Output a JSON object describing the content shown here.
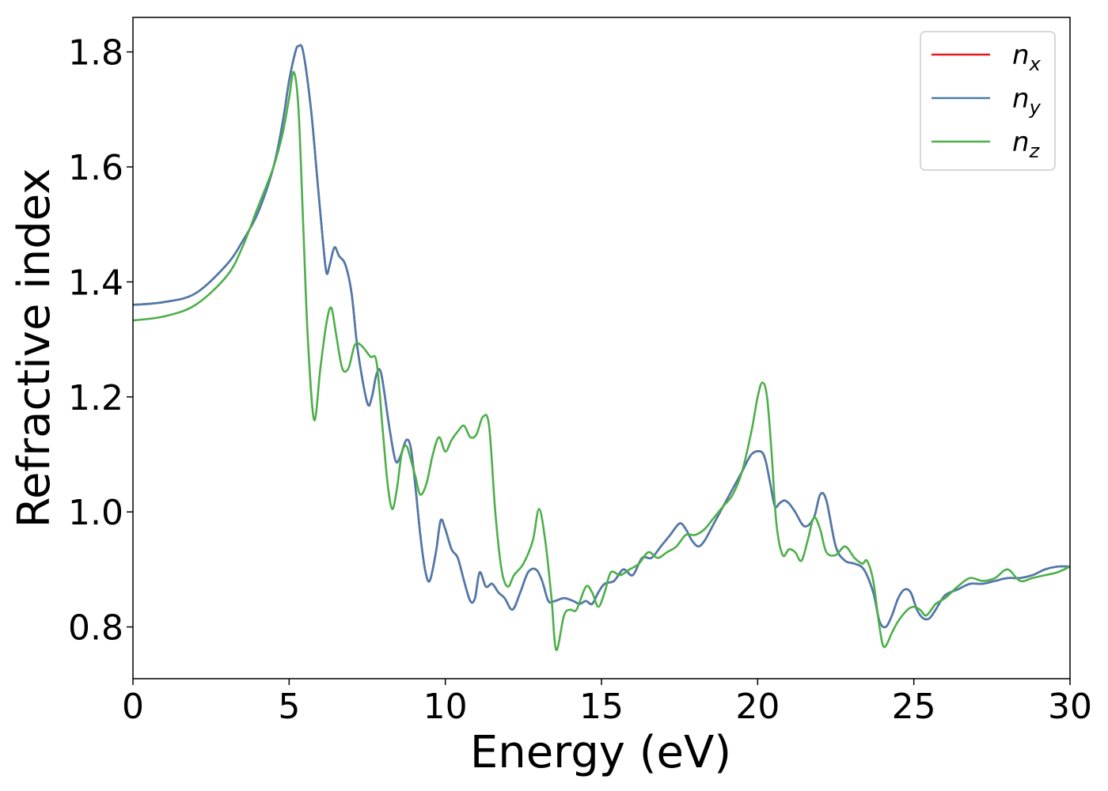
{
  "chart_data": {
    "type": "line",
    "title": "",
    "xlabel": "Energy (eV)",
    "ylabel": "Refractive index",
    "xlim": [
      0,
      30
    ],
    "ylim": [
      0.71,
      1.86
    ],
    "xticks": [
      0,
      5,
      10,
      15,
      20,
      25,
      30
    ],
    "xtick_labels": [
      "0",
      "5",
      "10",
      "15",
      "20",
      "25",
      "30"
    ],
    "yticks": [
      0.8,
      1.0,
      1.2,
      1.4,
      1.6,
      1.8
    ],
    "ytick_labels": [
      "0.8",
      "1.0",
      "1.2",
      "1.4",
      "1.6",
      "1.8"
    ],
    "grid": false,
    "legend_position": "top-right",
    "series": [
      {
        "name": "n_x",
        "legend_base": "n",
        "legend_sub": "x",
        "color": "#e41a1c",
        "x": [
          0,
          1,
          2,
          3,
          3.5,
          4,
          4.5,
          4.8,
          5.0,
          5.2,
          5.3,
          5.45,
          5.7,
          5.9,
          6.1,
          6.2,
          6.3,
          6.45,
          6.6,
          6.8,
          7.0,
          7.2,
          7.5,
          7.65,
          7.8,
          7.95,
          8.2,
          8.4,
          8.55,
          8.75,
          8.9,
          9.05,
          9.2,
          9.35,
          9.5,
          9.7,
          9.85,
          10.0,
          10.2,
          10.4,
          10.6,
          10.8,
          10.95,
          11.1,
          11.3,
          11.5,
          11.7,
          11.9,
          12.15,
          12.4,
          12.65,
          12.9,
          13.1,
          13.3,
          13.5,
          13.8,
          14.1,
          14.3,
          14.5,
          14.7,
          14.9,
          15.1,
          15.4,
          15.7,
          16.0,
          16.3,
          16.6,
          16.9,
          17.2,
          17.5,
          17.7,
          17.9,
          18.1,
          18.3,
          18.6,
          18.9,
          19.2,
          19.5,
          19.8,
          20.1,
          20.25,
          20.4,
          20.55,
          20.7,
          20.85,
          21.0,
          21.2,
          21.5,
          21.8,
          22.0,
          22.2,
          22.5,
          22.8,
          23.1,
          23.4,
          23.7,
          23.9,
          24.1,
          24.3,
          24.5,
          24.7,
          24.9,
          25.1,
          25.3,
          25.5,
          25.7,
          26.0,
          26.4,
          26.8,
          27.2,
          27.6,
          28.0,
          28.4,
          28.8,
          29.2,
          29.6,
          30.0
        ],
        "y": [
          1.36,
          1.365,
          1.38,
          1.43,
          1.47,
          1.52,
          1.6,
          1.68,
          1.75,
          1.8,
          1.81,
          1.8,
          1.7,
          1.58,
          1.46,
          1.415,
          1.43,
          1.46,
          1.445,
          1.43,
          1.38,
          1.28,
          1.19,
          1.2,
          1.24,
          1.24,
          1.15,
          1.09,
          1.095,
          1.125,
          1.11,
          1.04,
          0.96,
          0.9,
          0.88,
          0.93,
          0.985,
          0.97,
          0.935,
          0.92,
          0.88,
          0.845,
          0.85,
          0.895,
          0.87,
          0.875,
          0.86,
          0.85,
          0.83,
          0.86,
          0.895,
          0.9,
          0.88,
          0.845,
          0.845,
          0.85,
          0.845,
          0.84,
          0.845,
          0.84,
          0.86,
          0.875,
          0.88,
          0.9,
          0.89,
          0.92,
          0.92,
          0.94,
          0.96,
          0.98,
          0.97,
          0.95,
          0.94,
          0.95,
          0.98,
          1.01,
          1.04,
          1.07,
          1.1,
          1.105,
          1.09,
          1.05,
          1.01,
          1.015,
          1.02,
          1.015,
          1.0,
          0.975,
          0.99,
          1.03,
          1.02,
          0.94,
          0.915,
          0.91,
          0.9,
          0.86,
          0.81,
          0.8,
          0.82,
          0.85,
          0.865,
          0.86,
          0.83,
          0.815,
          0.815,
          0.83,
          0.855,
          0.865,
          0.875,
          0.875,
          0.88,
          0.885,
          0.885,
          0.89,
          0.9,
          0.905,
          0.905
        ]
      },
      {
        "name": "n_y",
        "legend_base": "n",
        "legend_sub": "y",
        "color": "#4a7bad",
        "x": [
          0,
          1,
          2,
          3,
          3.5,
          4,
          4.5,
          4.8,
          5.0,
          5.2,
          5.3,
          5.45,
          5.7,
          5.9,
          6.1,
          6.2,
          6.3,
          6.45,
          6.6,
          6.8,
          7.0,
          7.2,
          7.5,
          7.65,
          7.8,
          7.95,
          8.2,
          8.4,
          8.55,
          8.75,
          8.9,
          9.05,
          9.2,
          9.35,
          9.5,
          9.7,
          9.85,
          10.0,
          10.2,
          10.4,
          10.6,
          10.8,
          10.95,
          11.1,
          11.3,
          11.5,
          11.7,
          11.9,
          12.15,
          12.4,
          12.65,
          12.9,
          13.1,
          13.3,
          13.5,
          13.8,
          14.1,
          14.3,
          14.5,
          14.7,
          14.9,
          15.1,
          15.4,
          15.7,
          16.0,
          16.3,
          16.6,
          16.9,
          17.2,
          17.5,
          17.7,
          17.9,
          18.1,
          18.3,
          18.6,
          18.9,
          19.2,
          19.5,
          19.8,
          20.1,
          20.25,
          20.4,
          20.55,
          20.7,
          20.85,
          21.0,
          21.2,
          21.5,
          21.8,
          22.0,
          22.2,
          22.5,
          22.8,
          23.1,
          23.4,
          23.7,
          23.9,
          24.1,
          24.3,
          24.5,
          24.7,
          24.9,
          25.1,
          25.3,
          25.5,
          25.7,
          26.0,
          26.4,
          26.8,
          27.2,
          27.6,
          28.0,
          28.4,
          28.8,
          29.2,
          29.6,
          30.0
        ],
        "y": [
          1.36,
          1.365,
          1.38,
          1.43,
          1.47,
          1.52,
          1.6,
          1.68,
          1.75,
          1.8,
          1.81,
          1.8,
          1.7,
          1.58,
          1.46,
          1.415,
          1.43,
          1.46,
          1.445,
          1.43,
          1.38,
          1.28,
          1.19,
          1.2,
          1.24,
          1.24,
          1.15,
          1.09,
          1.095,
          1.125,
          1.11,
          1.04,
          0.96,
          0.9,
          0.88,
          0.93,
          0.985,
          0.97,
          0.935,
          0.92,
          0.88,
          0.845,
          0.85,
          0.895,
          0.87,
          0.875,
          0.86,
          0.85,
          0.83,
          0.86,
          0.895,
          0.9,
          0.88,
          0.845,
          0.845,
          0.85,
          0.845,
          0.84,
          0.845,
          0.84,
          0.86,
          0.875,
          0.88,
          0.9,
          0.89,
          0.92,
          0.92,
          0.94,
          0.96,
          0.98,
          0.97,
          0.95,
          0.94,
          0.95,
          0.98,
          1.01,
          1.04,
          1.07,
          1.1,
          1.105,
          1.09,
          1.05,
          1.01,
          1.015,
          1.02,
          1.015,
          1.0,
          0.975,
          0.99,
          1.03,
          1.02,
          0.94,
          0.915,
          0.91,
          0.9,
          0.86,
          0.81,
          0.8,
          0.82,
          0.85,
          0.865,
          0.86,
          0.83,
          0.815,
          0.815,
          0.83,
          0.855,
          0.865,
          0.875,
          0.875,
          0.88,
          0.885,
          0.885,
          0.89,
          0.9,
          0.905,
          0.905
        ]
      },
      {
        "name": "n_z",
        "legend_base": "n",
        "legend_sub": "z",
        "color": "#4daf4a",
        "x": [
          0,
          1,
          2,
          3,
          3.5,
          4,
          4.5,
          4.8,
          5.0,
          5.15,
          5.3,
          5.45,
          5.6,
          5.8,
          6.0,
          6.2,
          6.35,
          6.5,
          6.7,
          6.9,
          7.1,
          7.3,
          7.6,
          7.8,
          8.0,
          8.15,
          8.3,
          8.45,
          8.6,
          8.75,
          8.9,
          9.05,
          9.2,
          9.4,
          9.6,
          9.8,
          10.0,
          10.2,
          10.4,
          10.6,
          10.8,
          11.0,
          11.2,
          11.4,
          11.6,
          11.8,
          12.0,
          12.2,
          12.5,
          12.8,
          13.0,
          13.2,
          13.4,
          13.55,
          13.8,
          14.0,
          14.2,
          14.5,
          14.7,
          14.9,
          15.1,
          15.3,
          15.6,
          15.9,
          16.2,
          16.5,
          16.8,
          17.1,
          17.4,
          17.7,
          18.0,
          18.3,
          18.6,
          18.9,
          19.2,
          19.5,
          19.8,
          20.0,
          20.15,
          20.3,
          20.45,
          20.6,
          20.8,
          21.0,
          21.2,
          21.4,
          21.6,
          21.8,
          22.0,
          22.2,
          22.5,
          22.8,
          23.1,
          23.35,
          23.5,
          23.7,
          23.9,
          24.05,
          24.3,
          24.5,
          24.8,
          25.0,
          25.2,
          25.4,
          25.7,
          26.0,
          26.4,
          26.8,
          27.2,
          27.6,
          28.0,
          28.4,
          28.8,
          29.2,
          29.6,
          30.0
        ],
        "y": [
          1.333,
          1.34,
          1.36,
          1.41,
          1.46,
          1.53,
          1.6,
          1.66,
          1.72,
          1.765,
          1.7,
          1.5,
          1.3,
          1.16,
          1.25,
          1.33,
          1.355,
          1.31,
          1.25,
          1.25,
          1.29,
          1.29,
          1.27,
          1.26,
          1.14,
          1.05,
          1.005,
          1.04,
          1.1,
          1.115,
          1.09,
          1.06,
          1.03,
          1.05,
          1.1,
          1.13,
          1.105,
          1.125,
          1.14,
          1.15,
          1.13,
          1.135,
          1.165,
          1.15,
          1.0,
          0.9,
          0.87,
          0.89,
          0.91,
          0.95,
          1.005,
          0.95,
          0.85,
          0.76,
          0.82,
          0.83,
          0.83,
          0.87,
          0.86,
          0.835,
          0.86,
          0.895,
          0.89,
          0.9,
          0.91,
          0.93,
          0.92,
          0.93,
          0.94,
          0.96,
          0.96,
          0.97,
          0.99,
          1.01,
          1.03,
          1.07,
          1.14,
          1.2,
          1.225,
          1.2,
          1.1,
          0.98,
          0.925,
          0.935,
          0.93,
          0.915,
          0.95,
          0.99,
          0.97,
          0.93,
          0.925,
          0.94,
          0.92,
          0.91,
          0.915,
          0.88,
          0.8,
          0.765,
          0.79,
          0.81,
          0.83,
          0.835,
          0.83,
          0.82,
          0.84,
          0.85,
          0.87,
          0.885,
          0.88,
          0.885,
          0.9,
          0.88,
          0.885,
          0.89,
          0.895,
          0.905
        ]
      }
    ]
  }
}
